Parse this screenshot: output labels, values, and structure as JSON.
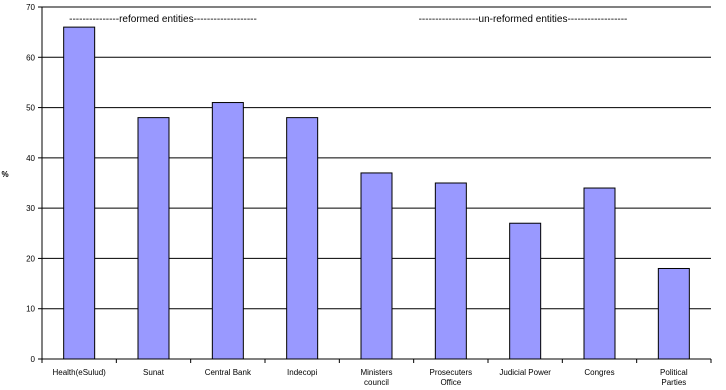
{
  "chart_data": {
    "type": "bar",
    "title": "",
    "xlabel": "",
    "ylabel": "%",
    "ylim": [
      0,
      70
    ],
    "yticks": [
      0,
      10,
      20,
      30,
      40,
      50,
      60,
      70
    ],
    "grid": true,
    "legend": "none",
    "bar_color": "#9999ff",
    "categories": [
      [
        "Health(eSulud)"
      ],
      [
        "Sunat"
      ],
      [
        "Central Bank"
      ],
      [
        "Indecopi"
      ],
      [
        "Ministers",
        "council"
      ],
      [
        "Prosecuters",
        "Office"
      ],
      [
        "Judicial Power"
      ],
      [
        "Congres"
      ],
      [
        "Political",
        "Parties"
      ]
    ],
    "values": [
      66,
      48,
      51,
      48,
      37,
      35,
      27,
      34,
      18
    ],
    "annotations": [
      "---------------reformed entities-------------------",
      "------------------un-reformed entities------------------"
    ]
  }
}
